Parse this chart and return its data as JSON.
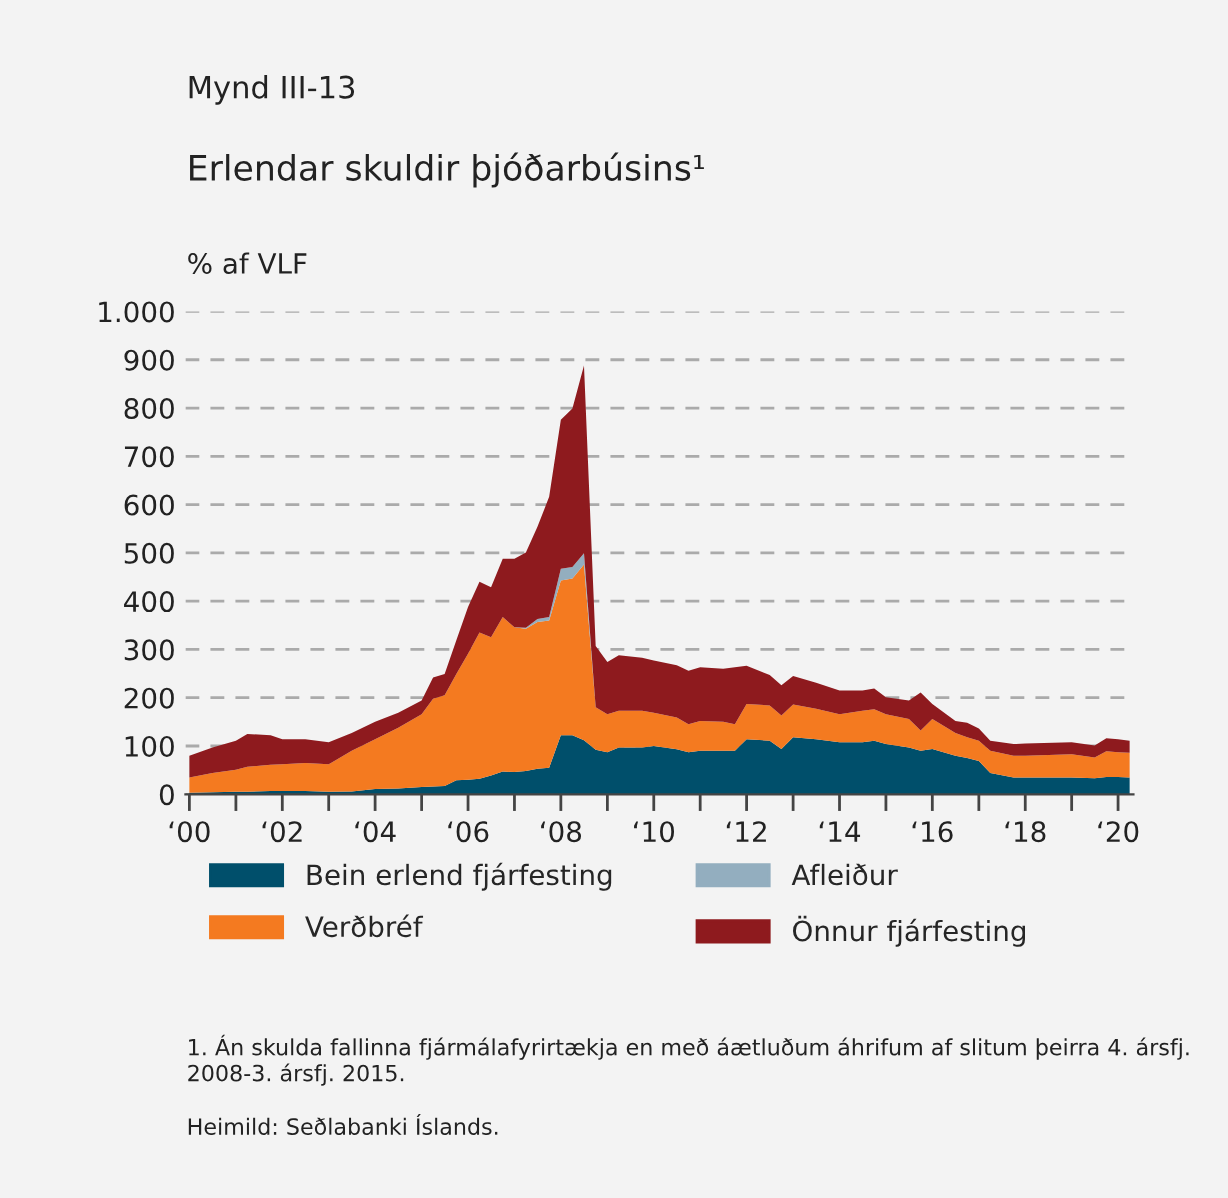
{
  "chart_data": {
    "type": "area",
    "stacked": true,
    "title": "Mynd III-13",
    "subtitle": "Erlendar skuldir þjóðarbúsins¹",
    "ylabel": "% af VLF",
    "x": [
      "2000-01",
      "2000-07",
      "2001-01",
      "2001-04",
      "2001-10",
      "2002-01",
      "2002-07",
      "2003-01",
      "2003-07",
      "2004-01",
      "2004-07",
      "2005-01",
      "2005-04",
      "2005-07",
      "2005-10",
      "2006-01",
      "2006-04",
      "2006-07",
      "2006-10",
      "2007-01",
      "2007-04",
      "2007-07",
      "2007-10",
      "2008-01",
      "2008-04",
      "2008-07",
      "2008-10",
      "2009-01",
      "2009-04",
      "2009-10",
      "2010-01",
      "2010-07",
      "2010-10",
      "2011-01",
      "2011-07",
      "2011-10",
      "2012-01",
      "2012-07",
      "2012-10",
      "2013-01",
      "2013-07",
      "2014-01",
      "2014-07",
      "2014-10",
      "2015-01",
      "2015-07",
      "2015-10",
      "2016-01",
      "2016-07",
      "2016-10",
      "2017-01",
      "2017-04",
      "2017-10",
      "2018-01",
      "2019-01",
      "2019-07",
      "2019-10",
      "2020-01",
      "2020-04"
    ],
    "series": [
      {
        "name": "Bein erlend fjárfesting",
        "color": "#004f6b",
        "values": [
          3,
          4,
          5,
          5,
          7,
          7,
          7,
          5,
          6,
          11,
          12,
          15,
          16,
          17,
          29,
          30,
          32,
          39,
          47,
          46,
          48,
          53,
          55,
          122,
          122,
          112,
          92,
          87,
          97,
          97,
          100,
          93,
          87,
          90,
          90,
          90,
          114,
          111,
          94,
          118,
          114,
          108,
          108,
          111,
          104,
          97,
          90,
          94,
          80,
          75,
          69,
          44,
          35,
          35,
          35,
          33,
          36,
          36,
          35
        ]
      },
      {
        "name": "Verðbréf",
        "color": "#f47a20",
        "values": [
          32,
          40,
          46,
          52,
          54,
          55,
          58,
          57,
          84,
          103,
          126,
          151,
          182,
          188,
          220,
          261,
          303,
          286,
          320,
          300,
          295,
          304,
          305,
          321,
          325,
          364,
          88,
          79,
          76,
          76,
          69,
          66,
          58,
          62,
          60,
          55,
          73,
          73,
          69,
          68,
          63,
          58,
          65,
          65,
          62,
          59,
          42,
          62,
          47,
          43,
          42,
          46,
          45,
          45,
          48,
          43,
          53,
          51,
          51
        ]
      },
      {
        "name": "Afleiður",
        "color": "#93aebf",
        "values": [
          0,
          0,
          0,
          0,
          0,
          0,
          0,
          0,
          0,
          0,
          0,
          0,
          0,
          0,
          0,
          0,
          0,
          0,
          0,
          0,
          2,
          6,
          7,
          24,
          24,
          23,
          0,
          0,
          0,
          0,
          0,
          0,
          0,
          0,
          0,
          0,
          0,
          0,
          0,
          0,
          0,
          0,
          0,
          0,
          0,
          0,
          0,
          0,
          0,
          0,
          0,
          0,
          0,
          0,
          0,
          0,
          0,
          0,
          0
        ]
      },
      {
        "name": "Önnur fjárfesting",
        "color": "#8e1a1e",
        "values": [
          45,
          53,
          60,
          68,
          61,
          52,
          49,
          46,
          37,
          36,
          31,
          28,
          44,
          44,
          70,
          97,
          105,
          104,
          121,
          142,
          156,
          191,
          249,
          309,
          328,
          389,
          127,
          108,
          115,
          110,
          108,
          108,
          111,
          111,
          110,
          118,
          79,
          63,
          63,
          59,
          54,
          49,
          42,
          43,
          35,
          38,
          79,
          31,
          25,
          30,
          25,
          21,
          24,
          25,
          25,
          25,
          27,
          27,
          25
        ]
      }
    ],
    "xlim": [
      "1999-12",
      "2020-05"
    ],
    "xticks": [
      {
        "value": "2000",
        "label": "‘00"
      },
      {
        "value": "2001",
        "label": null
      },
      {
        "value": "2002",
        "label": "‘02"
      },
      {
        "value": "2003",
        "label": null
      },
      {
        "value": "2004",
        "label": "‘04"
      },
      {
        "value": "2005",
        "label": null
      },
      {
        "value": "2006",
        "label": "‘06"
      },
      {
        "value": "2007",
        "label": null
      },
      {
        "value": "2008",
        "label": "‘08"
      },
      {
        "value": "2009",
        "label": null
      },
      {
        "value": "2010",
        "label": "‘10"
      },
      {
        "value": "2011",
        "label": null
      },
      {
        "value": "2012",
        "label": "‘12"
      },
      {
        "value": "2013",
        "label": null
      },
      {
        "value": "2014",
        "label": "‘14"
      },
      {
        "value": "2015",
        "label": null
      },
      {
        "value": "2016",
        "label": "‘16"
      },
      {
        "value": "2017",
        "label": null
      },
      {
        "value": "2018",
        "label": "‘18"
      },
      {
        "value": "2019",
        "label": null
      },
      {
        "value": "2020",
        "label": "‘20"
      }
    ],
    "ylim": [
      0,
      1000
    ],
    "yticks": [
      0,
      100,
      200,
      300,
      400,
      500,
      600,
      700,
      800,
      900,
      {
        "value": 1000,
        "label": "1.000"
      }
    ],
    "grid": "y",
    "legend": "bottom",
    "annotations": [
      "1. Án skulda fallinna fjármálafyrirtækja en með áætluðum áhrifum af slitum þeirra 4. ársfj. 2008-3. ársfj. 2015.",
      "Heimild: Seðlabanki Íslands."
    ]
  }
}
